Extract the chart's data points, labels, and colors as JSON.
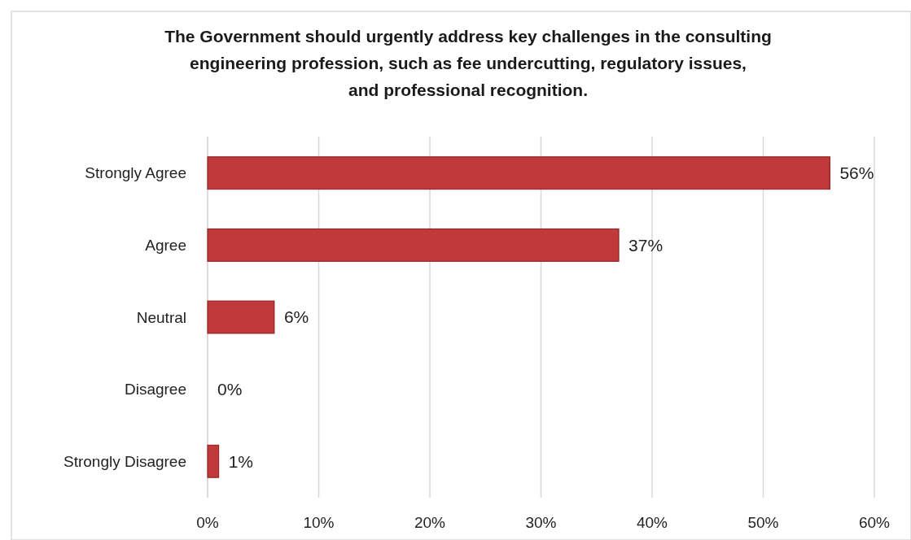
{
  "chart_data": {
    "type": "bar",
    "orientation": "horizontal",
    "title": "The Government should urgently address key challenges in the consulting engineering profession, such as fee undercutting, regulatory issues, and professional recognition.",
    "categories": [
      "Strongly Agree",
      "Agree",
      "Neutral",
      "Disagree",
      "Strongly Disagree"
    ],
    "values": [
      56,
      37,
      6,
      0,
      1
    ],
    "value_labels": [
      "56%",
      "37%",
      "6%",
      "0%",
      "1%"
    ],
    "color": "#c0393b",
    "xlim": [
      0,
      60
    ],
    "xticks": [
      {
        "value": 0,
        "label": "0%"
      },
      {
        "value": 10,
        "label": "10%"
      },
      {
        "value": 20,
        "label": "20%"
      },
      {
        "value": 30,
        "label": "30%"
      },
      {
        "value": 40,
        "label": "40%"
      },
      {
        "value": 50,
        "label": "50%"
      },
      {
        "value": 60,
        "label": "60%"
      }
    ],
    "grid": "x"
  }
}
